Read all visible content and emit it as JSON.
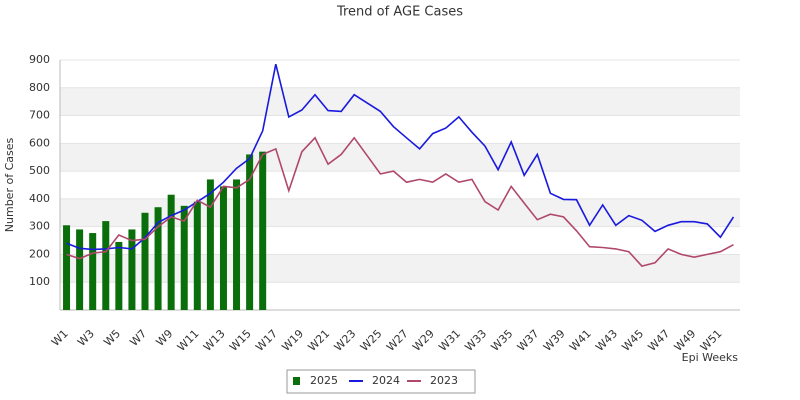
{
  "chart_data": {
    "type": "bar_line",
    "title": "Trend of AGE Cases",
    "x_label": "Epi Weeks",
    "y_label": "Number of Cases",
    "categories": [
      "W1",
      null,
      "W3",
      null,
      "W5",
      null,
      "W7",
      null,
      "W9",
      null,
      "W11",
      null,
      "W13",
      null,
      "W15",
      null,
      "W17",
      null,
      "W19",
      null,
      "W21",
      null,
      "W23",
      null,
      "W25",
      null,
      "W27",
      null,
      "W29",
      null,
      "W31",
      null,
      "W33",
      null,
      "W35",
      null,
      "W37",
      null,
      "W39",
      null,
      "W41",
      null,
      "W43",
      null,
      "W45",
      null,
      "W47",
      null,
      "W49",
      null,
      "W51",
      null
    ],
    "series": [
      {
        "name": "2025",
        "kind": "bar",
        "color": "#0a6e0a",
        "values": [
          305,
          290,
          277,
          320,
          245,
          290,
          350,
          370,
          415,
          375,
          390,
          470,
          445,
          470,
          560,
          570,
          null,
          null,
          null,
          null,
          null,
          null,
          null,
          null,
          null,
          null,
          null,
          null,
          null,
          null,
          null,
          null,
          null,
          null,
          null,
          null,
          null,
          null,
          null,
          null,
          null,
          null,
          null,
          null,
          null,
          null,
          null,
          null,
          null,
          null,
          null,
          null
        ]
      },
      {
        "name": "2024",
        "kind": "line",
        "color": "#1a1adf",
        "values": [
          240,
          222,
          218,
          220,
          225,
          220,
          260,
          315,
          340,
          360,
          390,
          420,
          460,
          510,
          545,
          645,
          885,
          695,
          720,
          775,
          718,
          715,
          775,
          745,
          715,
          660,
          620,
          580,
          635,
          655,
          695,
          640,
          590,
          505,
          605,
          485,
          560,
          420,
          398,
          397,
          305,
          378,
          305,
          340,
          323,
          283,
          305,
          318,
          318,
          310,
          262,
          335
        ]
      },
      {
        "name": "2023",
        "kind": "line",
        "color": "#b0486e",
        "values": [
          200,
          185,
          205,
          210,
          270,
          250,
          255,
          300,
          335,
          320,
          395,
          370,
          445,
          440,
          470,
          560,
          580,
          430,
          570,
          620,
          525,
          560,
          620,
          555,
          490,
          500,
          460,
          470,
          460,
          490,
          460,
          470,
          390,
          360,
          445,
          385,
          325,
          345,
          335,
          285,
          228,
          225,
          220,
          210,
          158,
          170,
          220,
          200,
          190,
          200,
          210,
          235
        ]
      }
    ],
    "ylim": [
      0,
      900
    ],
    "yticks": [
      100,
      200,
      300,
      400,
      500,
      600,
      700,
      800,
      900
    ],
    "grid": true
  }
}
